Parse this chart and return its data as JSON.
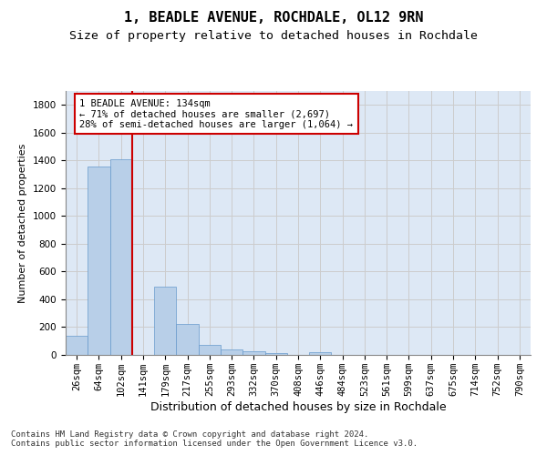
{
  "title": "1, BEADLE AVENUE, ROCHDALE, OL12 9RN",
  "subtitle": "Size of property relative to detached houses in Rochdale",
  "xlabel": "Distribution of detached houses by size in Rochdale",
  "ylabel": "Number of detached properties",
  "categories": [
    "26sqm",
    "64sqm",
    "102sqm",
    "141sqm",
    "179sqm",
    "217sqm",
    "255sqm",
    "293sqm",
    "332sqm",
    "370sqm",
    "408sqm",
    "446sqm",
    "484sqm",
    "523sqm",
    "561sqm",
    "599sqm",
    "637sqm",
    "675sqm",
    "714sqm",
    "752sqm",
    "790sqm"
  ],
  "values": [
    135,
    1355,
    1410,
    0,
    490,
    225,
    75,
    42,
    25,
    10,
    0,
    20,
    0,
    0,
    0,
    0,
    0,
    0,
    0,
    0,
    0
  ],
  "bar_color": "#b8cfe8",
  "bar_edge_color": "#6699cc",
  "grid_color": "#cccccc",
  "background_color": "#dde8f5",
  "vline_x": 3.0,
  "vline_color": "#cc0000",
  "annotation_text": "1 BEADLE AVENUE: 134sqm\n← 71% of detached houses are smaller (2,697)\n28% of semi-detached houses are larger (1,064) →",
  "annotation_box_color": "#ffffff",
  "annotation_border_color": "#cc0000",
  "footer_text": "Contains HM Land Registry data © Crown copyright and database right 2024.\nContains public sector information licensed under the Open Government Licence v3.0.",
  "ylim": [
    0,
    1900
  ],
  "yticks": [
    0,
    200,
    400,
    600,
    800,
    1000,
    1200,
    1400,
    1600,
    1800
  ],
  "title_fontsize": 11,
  "subtitle_fontsize": 9.5,
  "xlabel_fontsize": 9,
  "ylabel_fontsize": 8,
  "tick_fontsize": 7.5,
  "footer_fontsize": 6.5,
  "ann_fontsize": 7.5
}
